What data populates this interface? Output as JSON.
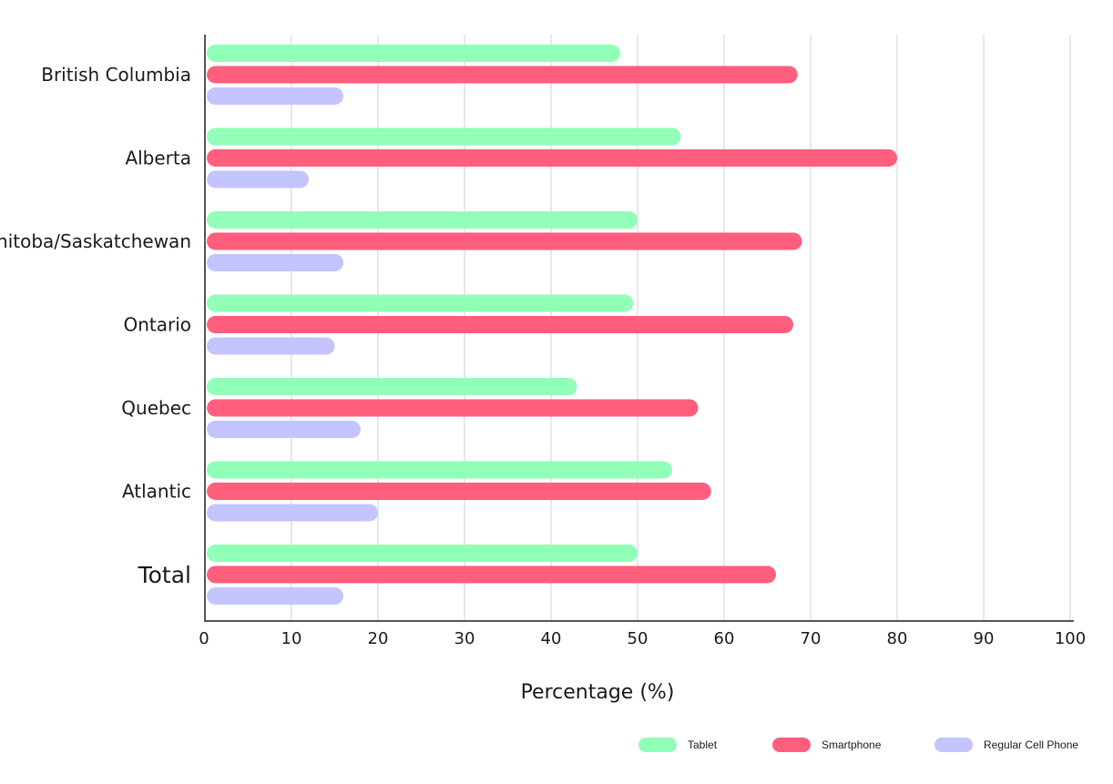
{
  "chart_data": {
    "type": "bar",
    "orientation": "horizontal",
    "categories": [
      "British Columbia",
      "Alberta",
      "Manitoba/Saskatchewan",
      "Ontario",
      "Quebec",
      "Atlantic",
      "Total"
    ],
    "series": [
      {
        "name": "Tablet",
        "color": "#91ffb7",
        "values": [
          48,
          55,
          50,
          49.5,
          43,
          54,
          50
        ]
      },
      {
        "name": "Smartphone",
        "color": "#ff5e7d",
        "values": [
          68.5,
          80,
          69,
          68,
          57,
          58.5,
          66
        ]
      },
      {
        "name": "Regular Cell Phone",
        "color": "#c4c4ff",
        "values": [
          16,
          12,
          16,
          15,
          18,
          20,
          16
        ]
      }
    ],
    "title": "",
    "xlabel": "Percentage (%)",
    "ylabel": "",
    "xlim": [
      0,
      100
    ],
    "xticks": [
      0,
      10,
      20,
      30,
      40,
      50,
      60,
      70,
      80,
      90,
      100
    ],
    "xtick_labels": [
      "0",
      "10",
      "20",
      "30",
      "40",
      "50",
      "60",
      "70",
      "80",
      "90",
      "100"
    ],
    "grid": true,
    "legend_position": "bottom-right"
  },
  "colors": {
    "grid": "#d8d8d8",
    "axis": "#555555"
  }
}
